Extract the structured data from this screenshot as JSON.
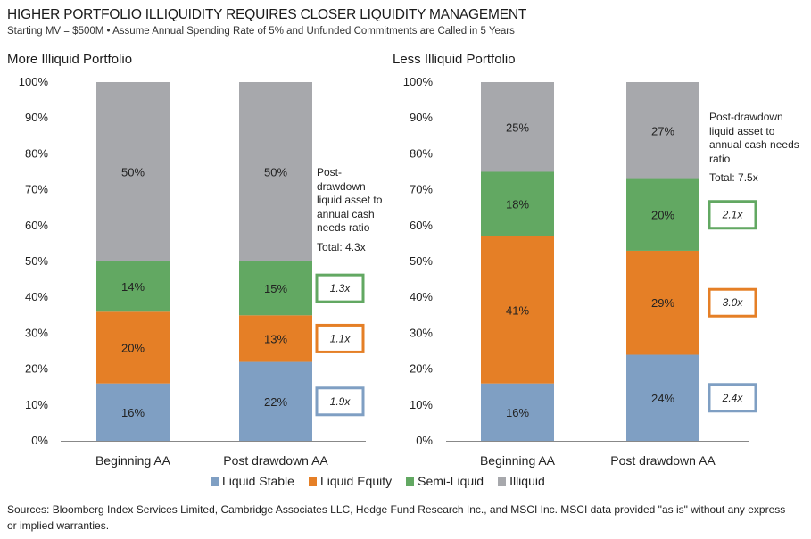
{
  "header": {
    "title": "HIGHER PORTFOLIO ILLIQUIDITY REQUIRES CLOSER LIQUIDITY MANAGEMENT",
    "subtitle": "Starting MV = $500M • Assume Annual Spending Rate of 5% and Unfunded Commitments are Called in 5 Years"
  },
  "colors": {
    "Liquid Stable": "#7F9FC3",
    "Liquid Equity": "#E57F26",
    "Semi-Liquid": "#62A862",
    "Illiquid": "#A7A8AC"
  },
  "chart_data": [
    {
      "type": "bar",
      "stacked": true,
      "title": "More Illiquid Portfolio",
      "categories": [
        "Beginning AA",
        "Post drawdown AA"
      ],
      "series": [
        {
          "name": "Liquid Stable",
          "values": [
            16,
            22
          ]
        },
        {
          "name": "Liquid Equity",
          "values": [
            20,
            13
          ]
        },
        {
          "name": "Semi-Liquid",
          "values": [
            14,
            15
          ]
        },
        {
          "name": "Illiquid",
          "values": [
            50,
            50
          ]
        }
      ],
      "ylim": [
        0,
        100
      ],
      "yticks": [
        "0%",
        "10%",
        "20%",
        "30%",
        "40%",
        "50%",
        "60%",
        "70%",
        "80%",
        "90%",
        "100%"
      ],
      "annotation": {
        "text": "Post-drawdown liquid asset to annual cash needs ratio",
        "total": "Total: 4.3x",
        "ratios": [
          {
            "series": "Semi-Liquid",
            "label": "1.3x"
          },
          {
            "series": "Liquid Equity",
            "label": "1.1x"
          },
          {
            "series": "Liquid Stable",
            "label": "1.9x"
          }
        ]
      }
    },
    {
      "type": "bar",
      "stacked": true,
      "title": "Less Illiquid Portfolio",
      "categories": [
        "Beginning AA",
        "Post drawdown AA"
      ],
      "series": [
        {
          "name": "Liquid Stable",
          "values": [
            16,
            24
          ]
        },
        {
          "name": "Liquid Equity",
          "values": [
            41,
            29
          ]
        },
        {
          "name": "Semi-Liquid",
          "values": [
            18,
            20
          ]
        },
        {
          "name": "Illiquid",
          "values": [
            25,
            27
          ]
        }
      ],
      "ylim": [
        0,
        100
      ],
      "yticks": [
        "0%",
        "10%",
        "20%",
        "30%",
        "40%",
        "50%",
        "60%",
        "70%",
        "80%",
        "90%",
        "100%"
      ],
      "annotation": {
        "text": "Post-drawdown liquid asset to annual cash needs ratio",
        "total": "Total: 7.5x",
        "ratios": [
          {
            "series": "Semi-Liquid",
            "label": "2.1x"
          },
          {
            "series": "Liquid Equity",
            "label": "3.0x"
          },
          {
            "series": "Liquid Stable",
            "label": "2.4x"
          }
        ]
      }
    }
  ],
  "legend": [
    "Liquid Stable",
    "Liquid Equity",
    "Semi-Liquid",
    "Illiquid"
  ],
  "footer": {
    "sources": "Sources: Bloomberg Index Services Limited, Cambridge Associates LLC, Hedge Fund Research Inc., and MSCI Inc. MSCI data provided \"as is\" without any express or implied warranties."
  }
}
